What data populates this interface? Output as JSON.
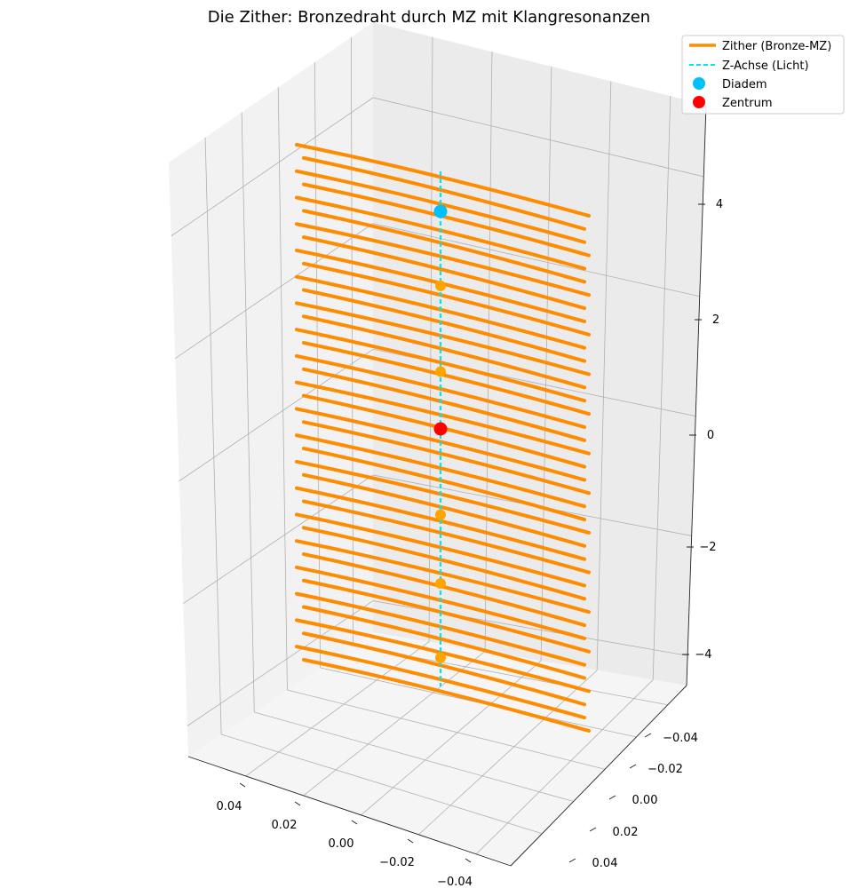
{
  "chart_data": {
    "type": "line3d",
    "title": "Die Zither: Bronzedraht durch MZ mit Klangresonanzen",
    "xlabel": "",
    "ylabel": "",
    "zlabel": "",
    "xlim": [
      -0.05,
      0.05
    ],
    "ylim": [
      -0.05,
      0.05
    ],
    "zlim": [
      -4.5,
      5.2
    ],
    "x_ticks": [
      "0.04",
      "0.02",
      "0.00",
      "−0.02",
      "−0.04"
    ],
    "y_ticks": [
      "−0.04",
      "−0.02",
      "0.00",
      "0.02",
      "0.04"
    ],
    "z_ticks": [
      "4",
      "2",
      "0",
      "−2",
      "−4"
    ],
    "grid": true,
    "legend_position": "top-right",
    "series": [
      {
        "name": "Zither (Bronze-MZ)",
        "style": "line",
        "color": "#ff8c00",
        "strings": 40,
        "z_range": [
          -4.5,
          4.5
        ]
      },
      {
        "name": "Z-Achse (Licht)",
        "style": "dashed",
        "color": "#00e5ee",
        "z_range": [
          -4.5,
          4.5
        ]
      },
      {
        "name": "Diadem",
        "style": "marker",
        "color": "#00bfff",
        "z": [
          3.8
        ]
      },
      {
        "name": "Zentrum",
        "style": "marker",
        "color": "#ff0000",
        "z": [
          0
        ]
      }
    ],
    "resonance_points": {
      "color": "#ffa500",
      "z": [
        2.5,
        1.0,
        -1.5,
        -2.7,
        -4.0
      ]
    }
  }
}
